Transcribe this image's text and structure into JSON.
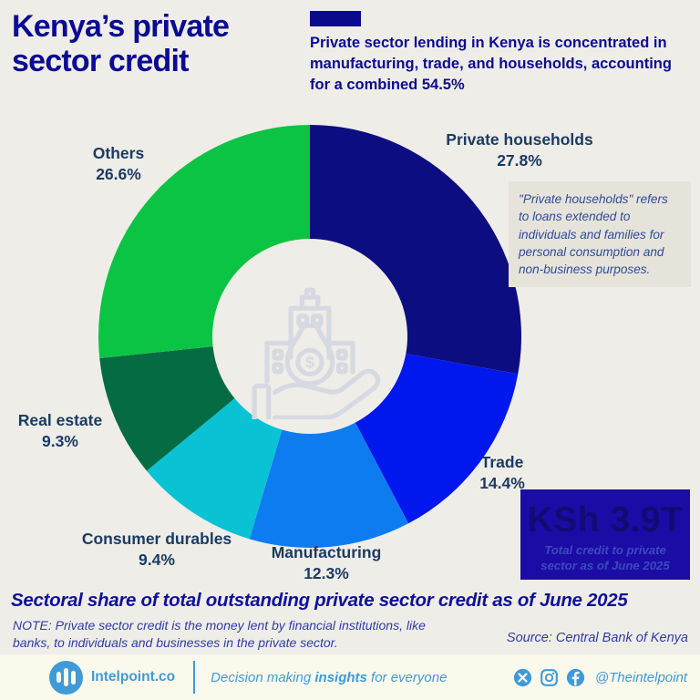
{
  "page": {
    "background": "#efede7",
    "footer_background": "#fbf9ec"
  },
  "header": {
    "title": "Kenya’s private sector credit",
    "subtitle": "Private sector lending in Kenya is concentrated in manufacturing, trade, and households, accounting for a combined 54.5%",
    "accent_color": "#0a0a8c",
    "title_color": "#0b0b93"
  },
  "chart_data": {
    "type": "pie",
    "style": "donut",
    "title": "Sectoral share of total outstanding private sector credit as of June 2025",
    "unit": "%",
    "start_angle_deg": 0,
    "clockwise": true,
    "segments": [
      {
        "label": "Private households",
        "value": 27.8,
        "pct_label": "27.8%",
        "color": "#0d0d82"
      },
      {
        "label": "Trade",
        "value": 14.4,
        "pct_label": "14.4%",
        "color": "#0018ee"
      },
      {
        "label": "Manufacturing",
        "value": 12.3,
        "pct_label": "12.3%",
        "color": "#0e7cf1"
      },
      {
        "label": "Consumer durables",
        "value": 9.4,
        "pct_label": "9.4%",
        "color": "#09c2d4"
      },
      {
        "label": "Real estate",
        "value": 9.3,
        "pct_label": "9.3%",
        "color": "#056b42"
      },
      {
        "label": "Others",
        "value": 26.6,
        "pct_label": "26.6%",
        "color": "#0cc443"
      }
    ],
    "center_icon": "hand-holding-money-bag-with-buildings-icon",
    "label_color": "#1b3b64"
  },
  "annotation": {
    "text": "\"Private households\" refers to loans extended to individuals and families for personal consumption and non-business purposes."
  },
  "total_box": {
    "value": "KSh 3.9T",
    "caption": "Total credit to private sector as of June 2025",
    "background": "#1b0ca6"
  },
  "bottom": {
    "title": "Sectoral share of total outstanding private sector credit as of June 2025",
    "note": "NOTE: Private sector credit is the money lent by financial institutions, like banks, to individuals and businesses in the private sector.",
    "source": "Source: Central Bank of Kenya"
  },
  "footer": {
    "brand": "Intelpoint.co",
    "logo_icon": "bar-chart-logo-icon",
    "tagline_pre": "Decision making ",
    "tagline_bold": "insights",
    "tagline_post": " for everyone",
    "social_icons": [
      "x-twitter-icon",
      "instagram-icon",
      "facebook-icon"
    ],
    "handle": "@Theintelpoint",
    "brand_color": "#3e9bd8"
  }
}
